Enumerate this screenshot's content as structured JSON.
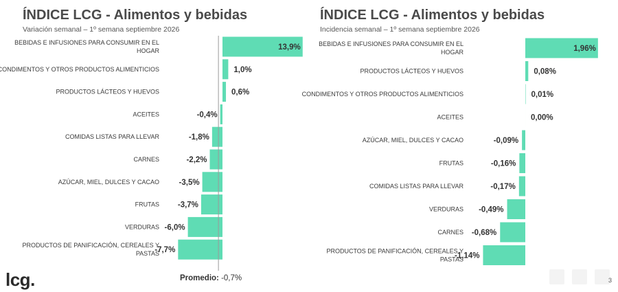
{
  "footer": {
    "logo": "lcg.",
    "average_label": "Promedio:",
    "average_value": "-0,7%",
    "page_number": "3"
  },
  "colors": {
    "bar": "#5fdcb4",
    "axis": "#9a9a9a",
    "text": "#3a3a3a"
  },
  "chart_data": [
    {
      "type": "bar",
      "orientation": "horizontal",
      "title": "ÍNDICE LCG - Alimentos y bebidas",
      "subtitle": "Variación semanal – 1º semana septiembre 2026",
      "unit": "%",
      "categories": [
        "BEBIDAS E INFUSIONES PARA CONSUMIR EN EL HOGAR",
        "CONDIMENTOS Y OTROS PRODUCTOS ALIMENTICIOS",
        "PRODUCTOS LÁCTEOS Y HUEVOS",
        "ACEITES",
        "COMIDAS LISTAS PARA LLEVAR",
        "CARNES",
        "AZÚCAR, MIEL, DULCES Y CACAO",
        "FRUTAS",
        "VERDURAS",
        "PRODUCTOS DE PANIFICACIÓN, CEREALES Y PASTAS"
      ],
      "values": [
        13.9,
        1.0,
        0.6,
        -0.4,
        -1.8,
        -2.2,
        -3.5,
        -3.7,
        -6.0,
        -7.7
      ],
      "labels": [
        "13,9%",
        "1,0%",
        "0,6%",
        "-0,4%",
        "-1,8%",
        "-2,2%",
        "-3,5%",
        "-3,7%",
        "-6,0%",
        "-7,7%"
      ],
      "reference_line": -0.7
    },
    {
      "type": "bar",
      "orientation": "horizontal",
      "title": "ÍNDICE LCG - Alimentos y bebidas",
      "subtitle": "Incidencia semanal – 1º semana septiembre 2026",
      "unit": "%",
      "categories": [
        "BEBIDAS E INFUSIONES PARA CONSUMIR EN EL HOGAR",
        "PRODUCTOS LÁCTEOS Y HUEVOS",
        "CONDIMENTOS Y OTROS PRODUCTOS ALIMENTICIOS",
        "ACEITES",
        "AZÚCAR, MIEL, DULCES Y CACAO",
        "FRUTAS",
        "COMIDAS LISTAS PARA LLEVAR",
        "VERDURAS",
        "CARNES",
        "PRODUCTOS DE PANIFICACIÓN, CEREALES Y PASTAS"
      ],
      "values": [
        1.96,
        0.08,
        0.01,
        0.0,
        -0.09,
        -0.16,
        -0.17,
        -0.49,
        -0.68,
        -1.14
      ],
      "labels": [
        "1,96%",
        "0,08%",
        "0,01%",
        "0,00%",
        "-0,09%",
        "-0,16%",
        "-0,17%",
        "-0,49%",
        "-0,68%",
        "-1,14%"
      ]
    }
  ]
}
